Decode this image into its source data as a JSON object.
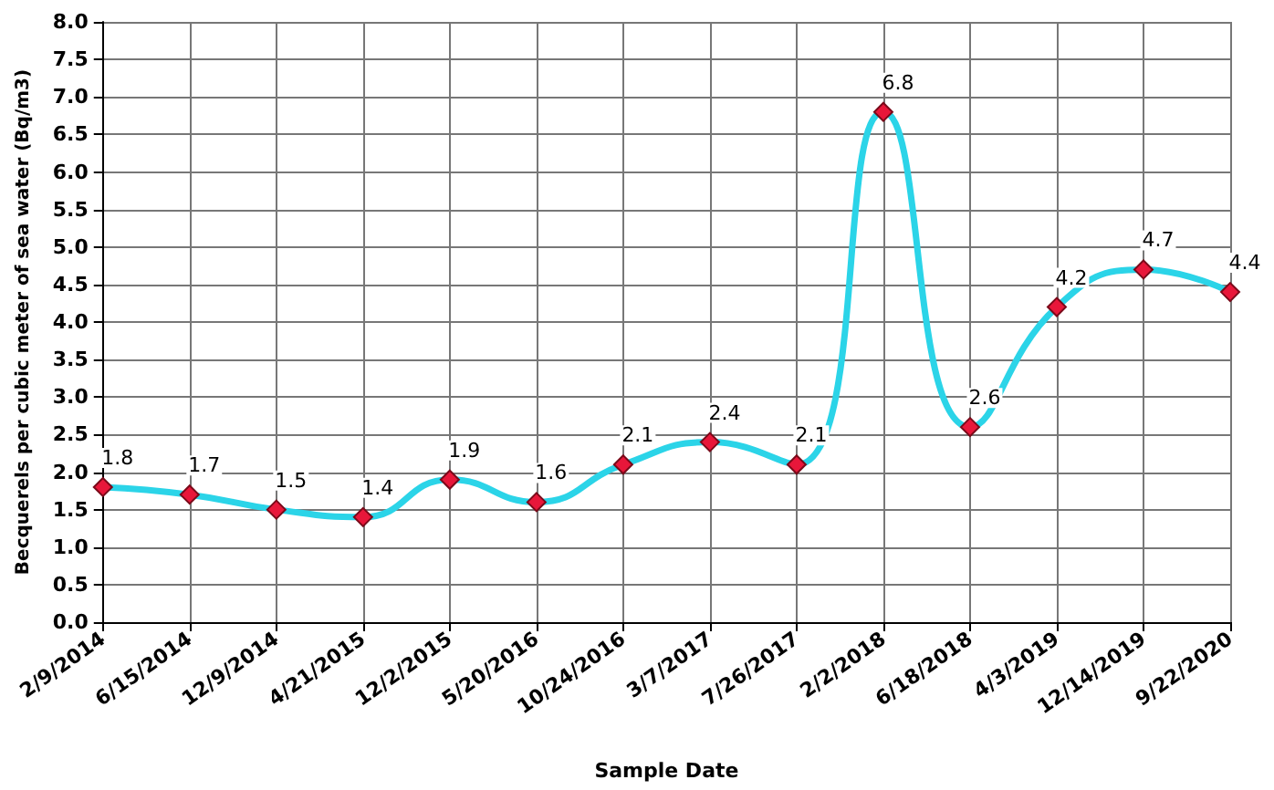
{
  "chart_data": {
    "type": "line",
    "xlabel": "Sample Date",
    "ylabel": "Becquerels per cubic meter of sea water (Bq/m3)",
    "categories": [
      "2/9/2014",
      "6/15/2014",
      "12/9/2014",
      "4/21/2015",
      "12/2/2015",
      "5/20/2016",
      "10/24/2016",
      "3/7/2017",
      "7/26/2017",
      "2/2/2018",
      "6/18/2018",
      "4/3/2019",
      "12/14/2019",
      "9/22/2020"
    ],
    "series": [
      {
        "color": "#2bd4e8",
        "values": [
          1.8,
          1.7,
          1.5,
          1.4,
          1.9,
          1.6,
          2.1,
          2.4,
          2.1,
          6.8,
          2.6,
          4.2,
          4.7,
          4.4
        ]
      }
    ],
    "ylim": [
      0,
      8
    ],
    "yticks": [
      {
        "value": 0,
        "label": "0.0"
      },
      {
        "value": 0.5,
        "label": "0.5"
      },
      {
        "value": 1,
        "label": "1.0"
      },
      {
        "value": 1.5,
        "label": "1.5"
      },
      {
        "value": 2,
        "label": "2.0"
      },
      {
        "value": 2.5,
        "label": "2.5"
      },
      {
        "value": 3,
        "label": "3.0"
      },
      {
        "value": 3.5,
        "label": "3.5"
      },
      {
        "value": 4,
        "label": "4.0"
      },
      {
        "value": 4.5,
        "label": "4.5"
      },
      {
        "value": 5,
        "label": "5.0"
      },
      {
        "value": 5.5,
        "label": "5.5"
      },
      {
        "value": 6,
        "label": "6.0"
      },
      {
        "value": 6.5,
        "label": "6.5"
      },
      {
        "value": 7,
        "label": "7.0"
      },
      {
        "value": 7.5,
        "label": "7.5"
      },
      {
        "value": 8,
        "label": "8.0"
      }
    ],
    "grid": true,
    "marker": "diamond",
    "line_style": "solid",
    "data_labels": true
  }
}
